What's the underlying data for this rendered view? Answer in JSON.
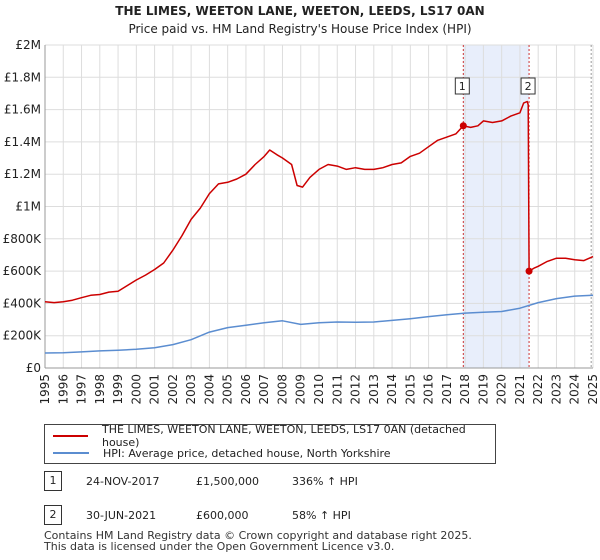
{
  "colors": {
    "price": "#cc0000",
    "hpi": "#5b8dd0",
    "shade": "#e8eefb",
    "grid": "#dddddd",
    "marker_line": "#cc3333"
  },
  "chart_data": {
    "type": "line",
    "title": "THE LIMES, WEETON LANE, WEETON, LEEDS, LS17 0AN",
    "subtitle": "Price paid vs. HM Land Registry's House Price Index (HPI)",
    "xlabel": "",
    "ylabel": "",
    "xlim": [
      1995,
      2025
    ],
    "ylim": [
      0,
      2000000
    ],
    "yticks": [
      0,
      200000,
      400000,
      600000,
      800000,
      1000000,
      1200000,
      1400000,
      1600000,
      1800000,
      2000000
    ],
    "ytick_labels": [
      "£0",
      "£200K",
      "£400K",
      "£600K",
      "£800K",
      "£1M",
      "£1.2M",
      "£1.4M",
      "£1.6M",
      "£1.8M",
      "£2M"
    ],
    "xticks": [
      1995,
      1996,
      1997,
      1998,
      1999,
      2000,
      2001,
      2002,
      2003,
      2004,
      2005,
      2006,
      2007,
      2008,
      2009,
      2010,
      2011,
      2012,
      2013,
      2014,
      2015,
      2016,
      2017,
      2018,
      2019,
      2020,
      2021,
      2022,
      2023,
      2024,
      2025
    ],
    "grid": true,
    "shaded_region": [
      2017.9,
      2021.5
    ],
    "markers": [
      {
        "label": "1",
        "x": 2017.9,
        "y": 1500000
      },
      {
        "label": "2",
        "x": 2021.5,
        "y": 600000
      }
    ],
    "series": [
      {
        "name": "THE LIMES, WEETON LANE, WEETON, LEEDS, LS17 0AN (detached house)",
        "x": [
          1995.0,
          1995.5,
          1996.0,
          1996.5,
          1997.0,
          1997.5,
          1998.0,
          1998.5,
          1999.0,
          1999.5,
          2000.0,
          2000.5,
          2001.0,
          2001.5,
          2002.0,
          2002.5,
          2003.0,
          2003.5,
          2004.0,
          2004.5,
          2005.0,
          2005.5,
          2006.0,
          2006.5,
          2007.0,
          2007.3,
          2007.7,
          2008.0,
          2008.5,
          2008.8,
          2009.1,
          2009.5,
          2010.0,
          2010.5,
          2011.0,
          2011.5,
          2012.0,
          2012.5,
          2013.0,
          2013.5,
          2014.0,
          2014.5,
          2015.0,
          2015.5,
          2016.0,
          2016.5,
          2017.0,
          2017.5,
          2017.9,
          2018.3,
          2018.7,
          2019.0,
          2019.5,
          2020.0,
          2020.5,
          2021.0,
          2021.2,
          2021.4,
          2021.45,
          2021.5,
          2021.8,
          2022.0,
          2022.5,
          2023.0,
          2023.5,
          2024.0,
          2024.5,
          2025.0
        ],
        "values": [
          410000,
          405000,
          410000,
          420000,
          435000,
          450000,
          455000,
          470000,
          475000,
          510000,
          545000,
          575000,
          610000,
          650000,
          730000,
          820000,
          920000,
          990000,
          1080000,
          1140000,
          1150000,
          1170000,
          1200000,
          1260000,
          1310000,
          1350000,
          1320000,
          1300000,
          1260000,
          1130000,
          1120000,
          1180000,
          1230000,
          1260000,
          1250000,
          1230000,
          1240000,
          1230000,
          1230000,
          1240000,
          1260000,
          1270000,
          1310000,
          1330000,
          1370000,
          1410000,
          1430000,
          1450000,
          1500000,
          1490000,
          1500000,
          1530000,
          1520000,
          1530000,
          1560000,
          1580000,
          1640000,
          1650000,
          1630000,
          600000,
          620000,
          630000,
          660000,
          680000,
          680000,
          670000,
          665000,
          690000
        ]
      },
      {
        "name": "HPI: Average price, detached house, North Yorkshire",
        "x": [
          1995,
          1996,
          1997,
          1998,
          1999,
          2000,
          2001,
          2002,
          2003,
          2004,
          2005,
          2006,
          2007,
          2008,
          2009,
          2010,
          2011,
          2012,
          2013,
          2014,
          2015,
          2016,
          2017,
          2018,
          2019,
          2020,
          2021,
          2022,
          2023,
          2024,
          2025
        ],
        "values": [
          93000,
          95000,
          100000,
          106000,
          110000,
          116000,
          126000,
          145000,
          175000,
          222000,
          250000,
          265000,
          280000,
          292000,
          270000,
          280000,
          285000,
          283000,
          285000,
          295000,
          305000,
          318000,
          330000,
          340000,
          345000,
          350000,
          370000,
          405000,
          430000,
          445000,
          450000
        ]
      }
    ]
  },
  "legend": {
    "price_label": "THE LIMES, WEETON LANE, WEETON, LEEDS, LS17 0AN (detached house)",
    "hpi_label": "HPI: Average price, detached house, North Yorkshire"
  },
  "transactions": [
    {
      "num": "1",
      "date": "24-NOV-2017",
      "price": "£1,500,000",
      "hpi": "336% ↑ HPI"
    },
    {
      "num": "2",
      "date": "30-JUN-2021",
      "price": "£600,000",
      "hpi": "58% ↑ HPI"
    }
  ],
  "footer": {
    "line1": "Contains HM Land Registry data © Crown copyright and database right 2025.",
    "line2": "This data is licensed under the Open Government Licence v3.0."
  }
}
